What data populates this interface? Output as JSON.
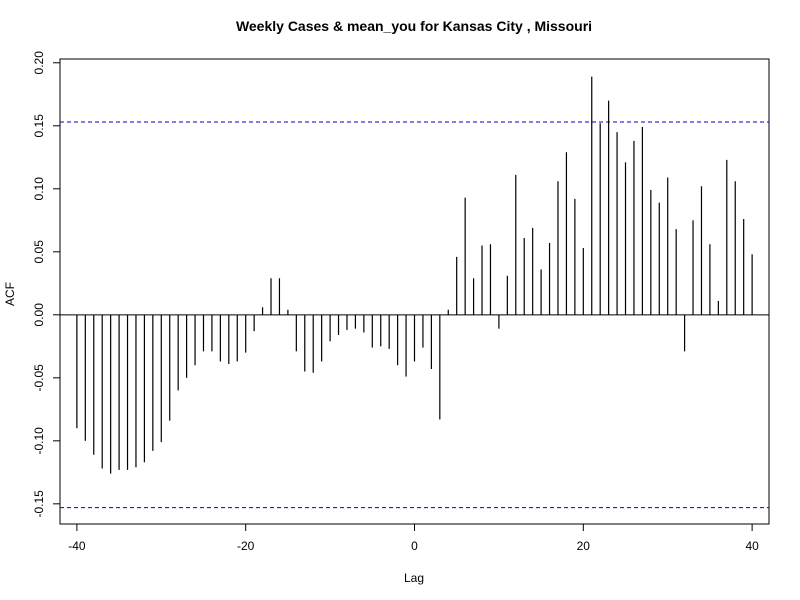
{
  "chart_data": {
    "type": "bar",
    "title": "Weekly Cases & mean_you for Kansas City , Missouri",
    "xlabel": "Lag",
    "ylabel": "ACF",
    "xlim": [
      -42,
      42
    ],
    "ylim": [
      -0.166,
      0.203
    ],
    "x_ticks": [
      -40,
      -20,
      0,
      20,
      40
    ],
    "y_ticks": [
      -0.15,
      -0.1,
      -0.05,
      0.0,
      0.05,
      0.1,
      0.15,
      0.2
    ],
    "x_tick_labels": [
      "-40",
      "-20",
      "0",
      "20",
      "40"
    ],
    "y_tick_labels": [
      "-0.15",
      "-0.10",
      "-0.05",
      "0.00",
      "0.05",
      "0.10",
      "0.15",
      "0.20"
    ],
    "confidence_limit": 0.153,
    "confidence_line_color": "#0000cc",
    "bar_color": "#000000",
    "lags": [
      -40,
      -39,
      -38,
      -37,
      -36,
      -35,
      -34,
      -33,
      -32,
      -31,
      -30,
      -29,
      -28,
      -27,
      -26,
      -25,
      -24,
      -23,
      -22,
      -21,
      -20,
      -19,
      -18,
      -17,
      -16,
      -15,
      -14,
      -13,
      -12,
      -11,
      -10,
      -9,
      -8,
      -7,
      -6,
      -5,
      -4,
      -3,
      -2,
      -1,
      0,
      1,
      2,
      3,
      4,
      5,
      6,
      7,
      8,
      9,
      10,
      11,
      12,
      13,
      14,
      15,
      16,
      17,
      18,
      19,
      20,
      21,
      22,
      23,
      24,
      25,
      26,
      27,
      28,
      29,
      30,
      31,
      32,
      33,
      34,
      35,
      36,
      37,
      38,
      39,
      40
    ],
    "values": [
      -0.09,
      -0.1,
      -0.111,
      -0.122,
      -0.126,
      -0.123,
      -0.123,
      -0.121,
      -0.117,
      -0.108,
      -0.101,
      -0.084,
      -0.06,
      -0.05,
      -0.04,
      -0.029,
      -0.029,
      -0.037,
      -0.039,
      -0.037,
      -0.03,
      -0.013,
      0.006,
      0.029,
      0.029,
      0.004,
      -0.029,
      -0.045,
      -0.046,
      -0.037,
      -0.021,
      -0.016,
      -0.012,
      -0.011,
      -0.014,
      -0.026,
      -0.025,
      -0.027,
      -0.04,
      -0.049,
      -0.037,
      -0.026,
      -0.043,
      -0.083,
      0.004,
      0.046,
      0.093,
      0.029,
      0.055,
      0.056,
      -0.011,
      0.031,
      0.111,
      0.061,
      0.069,
      0.036,
      0.057,
      0.106,
      0.129,
      0.092,
      0.053,
      0.189,
      0.152,
      0.17,
      0.145,
      0.121,
      0.138,
      0.149,
      0.099,
      0.089,
      0.109,
      0.068,
      -0.029,
      0.075,
      0.102,
      0.056,
      0.011,
      0.123,
      0.106,
      0.076,
      0.048
    ]
  }
}
